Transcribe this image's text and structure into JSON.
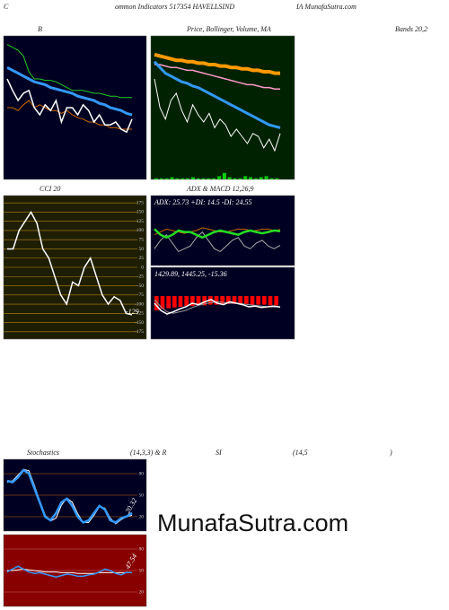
{
  "header": [
    "C",
    "ommon Indicators 517354 HAVELLSIND",
    "IA MunafaSutra.com"
  ],
  "captions": [
    "B",
    "Price, Bollinger, Volume, MA",
    "Bands 20,2",
    "CCI 20",
    "ADX  & MACD 12,26,9",
    "Stochastics",
    "(14,3,3) & R",
    "SI",
    "(14,5",
    ")"
  ],
  "watermark": "MunafaSutra.com",
  "chart_data": [
    {
      "type": "line",
      "background": "#000022",
      "ylim": [
        0,
        100
      ],
      "series": [
        {
          "color": "#22cc22",
          "width": 1,
          "values": [
            94,
            92,
            90,
            86,
            75,
            70,
            70,
            69,
            69,
            68,
            66,
            64,
            62,
            62,
            62,
            61,
            60,
            60,
            59,
            58,
            58,
            57,
            57,
            57
          ]
        },
        {
          "color": "#cc6600",
          "width": 1,
          "values": [
            50,
            50,
            48,
            52,
            55,
            50,
            52,
            50,
            48,
            48,
            46,
            48,
            45,
            43,
            42,
            40,
            40,
            38,
            38,
            36,
            36,
            35,
            35,
            35
          ]
        },
        {
          "color": "#3399ff",
          "width": 3,
          "values": [
            78,
            76,
            74,
            72,
            70,
            68,
            67,
            66,
            64,
            63,
            62,
            61,
            60,
            58,
            57,
            56,
            55,
            53,
            52,
            50,
            49,
            48,
            46,
            45
          ]
        },
        {
          "color": "#ffffff",
          "width": 1.5,
          "values": [
            70,
            62,
            55,
            60,
            62,
            50,
            45,
            52,
            48,
            55,
            40,
            50,
            50,
            45,
            52,
            48,
            40,
            45,
            38,
            38,
            40,
            35,
            33,
            42
          ]
        }
      ]
    },
    {
      "type": "line",
      "background": "#002200",
      "ylim": [
        0,
        100
      ],
      "series": [
        {
          "color": "#ff9900",
          "width": 4,
          "values": [
            87,
            86,
            85,
            84,
            83,
            83,
            82,
            82,
            81,
            81,
            80,
            80,
            79,
            79,
            78,
            78,
            77,
            77,
            76,
            76,
            75,
            75,
            74,
            74
          ]
        },
        {
          "color": "#ff99cc",
          "width": 1.5,
          "values": [
            80,
            80,
            79,
            78,
            78,
            77,
            76,
            76,
            75,
            74,
            73,
            72,
            71,
            70,
            69,
            68,
            67,
            66,
            66,
            65,
            64,
            64,
            63,
            63
          ]
        },
        {
          "color": "#3399ff",
          "width": 3,
          "values": [
            82,
            78,
            74,
            72,
            70,
            68,
            67,
            65,
            64,
            62,
            60,
            58,
            56,
            54,
            52,
            50,
            48,
            46,
            44,
            42,
            40,
            38,
            37,
            36
          ]
        },
        {
          "color": "#ffffff",
          "width": 1,
          "values": [
            70,
            50,
            42,
            55,
            60,
            48,
            40,
            52,
            45,
            40,
            46,
            36,
            42,
            38,
            30,
            35,
            30,
            25,
            32,
            30,
            22,
            28,
            20,
            32
          ]
        }
      ],
      "bars": {
        "color": "#00cc00",
        "values": [
          1,
          1,
          1,
          2,
          1,
          1,
          1,
          2,
          1,
          1,
          1,
          1,
          3,
          6,
          2,
          1,
          1,
          3,
          2,
          1,
          2,
          3,
          1,
          1
        ]
      }
    },
    {
      "type": "line",
      "title": "CCI 20",
      "background": "#1e1e05",
      "ylim": [
        -195,
        195
      ],
      "yticks": [
        175,
        150,
        125,
        100,
        75,
        50,
        25,
        0,
        -25,
        -50,
        -75,
        -100,
        -125,
        -150,
        -175
      ],
      "gridcolor": "#b8860b",
      "series": [
        {
          "color": "#ffffff",
          "width": 1.5,
          "values": [
            50,
            50,
            100,
            125,
            150,
            120,
            50,
            25,
            -25,
            -75,
            -100,
            -40,
            -50,
            0,
            25,
            -25,
            -75,
            -100,
            -80,
            -90,
            -125,
            -129
          ]
        }
      ],
      "annotation": "-129"
    },
    {
      "type": "line",
      "background": "#000022",
      "ylim": [
        0,
        50
      ],
      "annotation": "ADX: 25.73  +DI: 14.5  -DI: 24.55",
      "series": [
        {
          "color": "#cc6600",
          "width": 1,
          "values": [
            22,
            24,
            26,
            25,
            24,
            23,
            24,
            25,
            27,
            26,
            25,
            24,
            24,
            25,
            26,
            26,
            25,
            25,
            26,
            26,
            25,
            25.73
          ]
        },
        {
          "color": "#aaaaaa",
          "width": 1,
          "values": [
            12,
            18,
            22,
            16,
            10,
            12,
            14,
            20,
            24,
            18,
            12,
            10,
            14,
            18,
            20,
            14,
            12,
            16,
            18,
            14,
            12,
            14.5
          ]
        },
        {
          "color": "#22dd22",
          "width": 2.5,
          "values": [
            26,
            22,
            20,
            22,
            25,
            24,
            24,
            22,
            20,
            22,
            24,
            25,
            24,
            23,
            22,
            24,
            25,
            24,
            23,
            24,
            25,
            24.55
          ]
        }
      ]
    },
    {
      "type": "line",
      "background": "#000022",
      "ylim": [
        -60,
        40
      ],
      "annotation": "1429.89,  1445.25,  -15.36",
      "series": [
        {
          "color": "#999999",
          "width": 1,
          "values": [
            -5,
            -15,
            -22,
            -24,
            -22,
            -20,
            -16,
            -13,
            -11,
            -9,
            -8,
            -9,
            -10,
            -10,
            -11,
            -12,
            -13,
            -14,
            -15,
            -15,
            -15.36
          ]
        },
        {
          "color": "#ffffff",
          "width": 1.5,
          "values": [
            -10,
            -20,
            -25,
            -22,
            -18,
            -15,
            -10,
            -12,
            -8,
            -5,
            -10,
            -12,
            -8,
            -10,
            -12,
            -15,
            -14,
            -16,
            -15,
            -14,
            -15.36
          ]
        }
      ],
      "bars": {
        "color": "#ff0000",
        "values": [
          -20,
          -18,
          -17,
          -16,
          -15,
          -14,
          -14,
          -13,
          -13,
          -12,
          -12,
          -12,
          -11,
          -11,
          -11,
          -11,
          -12,
          -12,
          -12,
          -13,
          -13
        ]
      }
    },
    {
      "type": "line",
      "background": "#000022",
      "ylim": [
        0,
        100
      ],
      "yticks": [
        80,
        50,
        20
      ],
      "gridcolor": "#cc6600",
      "annotation": "20.32",
      "series": [
        {
          "color": "#ffffff",
          "width": 1,
          "values": [
            68,
            70,
            78,
            86,
            84,
            64,
            42,
            22,
            14,
            18,
            36,
            46,
            40,
            24,
            12,
            12,
            22,
            34,
            32,
            18,
            10,
            16,
            20,
            22
          ]
        },
        {
          "color": "#3399ff",
          "width": 2.5,
          "values": [
            70,
            68,
            75,
            85,
            80,
            60,
            40,
            20,
            15,
            25,
            40,
            45,
            35,
            20,
            12,
            15,
            25,
            35,
            30,
            15,
            12,
            18,
            20.32,
            25
          ]
        }
      ]
    },
    {
      "type": "line",
      "background": "#880000",
      "ylim": [
        0,
        100
      ],
      "yticks": [
        80,
        50,
        20
      ],
      "gridcolor": "#cc6666",
      "annotation": "47.54",
      "series": [
        {
          "color": "#ffffff",
          "width": 1,
          "values": [
            50,
            50,
            51,
            52,
            51,
            50,
            49,
            48,
            48,
            48,
            47,
            47,
            47,
            46,
            46,
            46,
            46,
            47,
            47,
            47,
            47,
            47,
            47,
            47
          ]
        },
        {
          "color": "#3399ff",
          "width": 1.5,
          "values": [
            48,
            52,
            56,
            52,
            48,
            46,
            47,
            45,
            43,
            41,
            43,
            45,
            44,
            42,
            42,
            44,
            45,
            48,
            52,
            50,
            46,
            44,
            47.54,
            47
          ]
        }
      ]
    }
  ]
}
